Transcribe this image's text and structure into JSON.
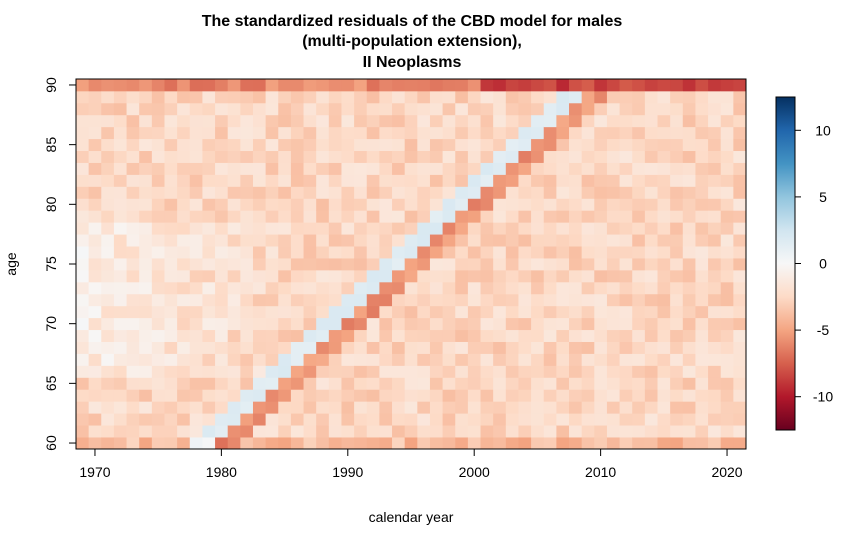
{
  "chart_data": {
    "type": "heatmap",
    "title_lines": [
      "The standardized residuals of the CBD model for males",
      "(multi-population extension),",
      "II Neoplasms"
    ],
    "xlabel": "calendar year",
    "ylabel": "age",
    "x_range": [
      1969,
      2021
    ],
    "y_range": [
      60,
      90
    ],
    "x_ticks": [
      {
        "value": 1970,
        "label": "1970"
      },
      {
        "value": 1980,
        "label": "1980"
      },
      {
        "value": 1990,
        "label": "1990"
      },
      {
        "value": 2000,
        "label": "2000"
      },
      {
        "value": 2010,
        "label": "2010"
      },
      {
        "value": 2020,
        "label": "2020"
      }
    ],
    "y_ticks": [
      {
        "value": 60,
        "label": "60"
      },
      {
        "value": 65,
        "label": "65"
      },
      {
        "value": 70,
        "label": "70"
      },
      {
        "value": 75,
        "label": "75"
      },
      {
        "value": 80,
        "label": "80"
      },
      {
        "value": 85,
        "label": "85"
      },
      {
        "value": 90,
        "label": "90"
      }
    ],
    "color_scale": {
      "min": -12.5,
      "max": 12.5,
      "low_color": "#67001f",
      "mid_color": "#f7f7f7",
      "high_color": "#053061",
      "stops": [
        "#67001f",
        "#b2182b",
        "#d6604d",
        "#f4a582",
        "#fddbc7",
        "#f7f7f7",
        "#d1e5f0",
        "#92c5de",
        "#4393c3",
        "#2166ac",
        "#053061"
      ],
      "ticks": [
        {
          "value": 10,
          "label": "10"
        },
        {
          "value": 5,
          "label": "5"
        },
        {
          "value": 0,
          "label": "0"
        },
        {
          "value": -5,
          "label": "-5"
        },
        {
          "value": -10,
          "label": "-10"
        }
      ]
    },
    "grid": false
  }
}
